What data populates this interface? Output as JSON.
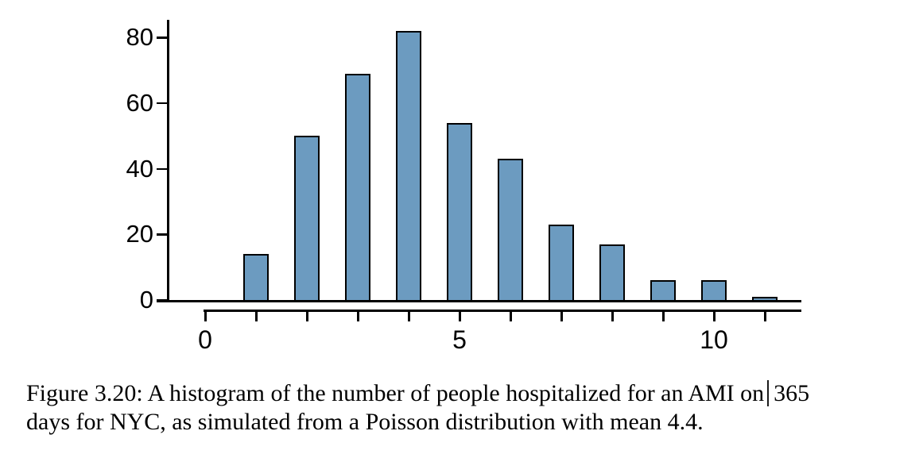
{
  "caption": {
    "line1_before_cursor": "Figure 3.20: A histogram of the number of people hospitalized for an AMI on",
    "line1_after_cursor": "365",
    "line2": "days for NYC, as simulated from a Poisson distribution with mean 4.4."
  },
  "chart_data": {
    "type": "bar",
    "title": "",
    "xlabel": "",
    "ylabel": "",
    "x": [
      1,
      2,
      3,
      4,
      5,
      6,
      7,
      8,
      9,
      10,
      11
    ],
    "values": [
      14,
      50,
      69,
      82,
      54,
      43,
      23,
      17,
      6,
      6,
      1
    ],
    "xlim": [
      -0.95,
      11.7
    ],
    "ylim": [
      0,
      85
    ],
    "x_ticks": [
      0,
      1,
      2,
      3,
      4,
      5,
      6,
      7,
      8,
      9,
      10,
      11
    ],
    "x_tick_labels": [
      {
        "at": 0,
        "label": "0"
      },
      {
        "at": 5,
        "label": "5"
      },
      {
        "at": 10,
        "label": "10"
      }
    ],
    "y_ticks": [
      {
        "at": 0,
        "label": "0"
      },
      {
        "at": 20,
        "label": "20"
      },
      {
        "at": 40,
        "label": "40"
      },
      {
        "at": 60,
        "label": "60"
      },
      {
        "at": 80,
        "label": "80"
      }
    ],
    "grid": false,
    "legend": null,
    "colors": {
      "bar_fill": "#6C9BC0",
      "bar_edge": "#000000",
      "axis": "#000000",
      "text": "#000000",
      "background": "#FFFFFF"
    }
  }
}
